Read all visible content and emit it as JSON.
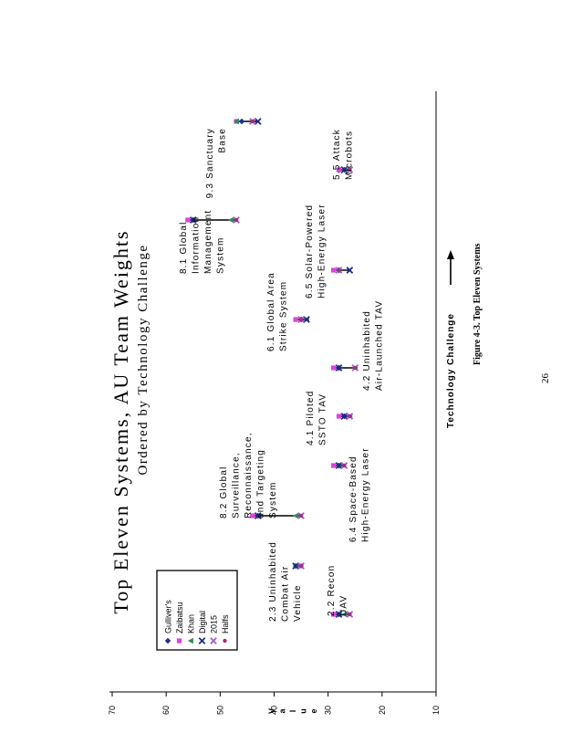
{
  "chart_data": {
    "type": "scatter",
    "title": "Top Eleven Systems, AU Team Weights",
    "subtitle": "Ordered by Technology Challenge",
    "xlabel": "Technology Challenge",
    "ylabel": "Value",
    "ylim": [
      10,
      70
    ],
    "yticks": [
      "70",
      "60",
      "50",
      "40",
      "30",
      "20",
      "10"
    ],
    "legend_position": "left",
    "grid": false,
    "series": [
      {
        "name": "Gulliver's",
        "marker": "diamond",
        "color": "#1f2f8f"
      },
      {
        "name": "Zaibatsu",
        "marker": "square",
        "color": "#e040e0"
      },
      {
        "name": "Khan",
        "marker": "triangle",
        "color": "#2e8b57"
      },
      {
        "name": "Digital",
        "marker": "x",
        "color": "#1a2a80"
      },
      {
        "name": "2015",
        "marker": "x",
        "color": "#a05ad0"
      },
      {
        "name": "Halfs",
        "marker": "dot",
        "color": "#a03080"
      }
    ],
    "systems": [
      {
        "label": "2.2 Recon UAV",
        "values": [
          28,
          29,
          27,
          28,
          26,
          26
        ]
      },
      {
        "label": "2.3 Uninhabited Combat Air Vehicle",
        "values": [
          36,
          35,
          36,
          36,
          35,
          35
        ]
      },
      {
        "label": "8.2 Global Surveillance, Reconnaissance, and Targeting System",
        "values": [
          43,
          44,
          36,
          43,
          35,
          35
        ]
      },
      {
        "label": "6.4 Space-Based High-Energy Laser",
        "values": [
          28,
          29,
          28,
          28,
          27,
          27
        ]
      },
      {
        "label": "4.1 Piloted SSTO TAV",
        "values": [
          27,
          28,
          26,
          27,
          26,
          26
        ]
      },
      {
        "label": "4.2 Uninhabited Air-Launched TAV",
        "values": [
          28,
          29,
          25,
          28,
          25,
          25
        ]
      },
      {
        "label": "6.1 Global Area Strike System",
        "values": [
          35,
          36,
          34,
          34,
          35,
          35
        ]
      },
      {
        "label": "8.1 Global Information Management System",
        "values": [
          55,
          56,
          48,
          55,
          47,
          47
        ]
      },
      {
        "label": "6.5 Solar-Powered High-Energy Laser",
        "values": [
          28,
          29,
          28,
          26,
          28,
          28
        ]
      },
      {
        "label": "5.5 Attack Microbots",
        "values": [
          27,
          28,
          27,
          27,
          26,
          26
        ]
      },
      {
        "label": "9.3 Sanctuary Base",
        "values": [
          46,
          47,
          47,
          43,
          44,
          44
        ]
      }
    ]
  },
  "figure_caption": "Figure 4-3.  Top Eleven Systems",
  "page_number": "26"
}
